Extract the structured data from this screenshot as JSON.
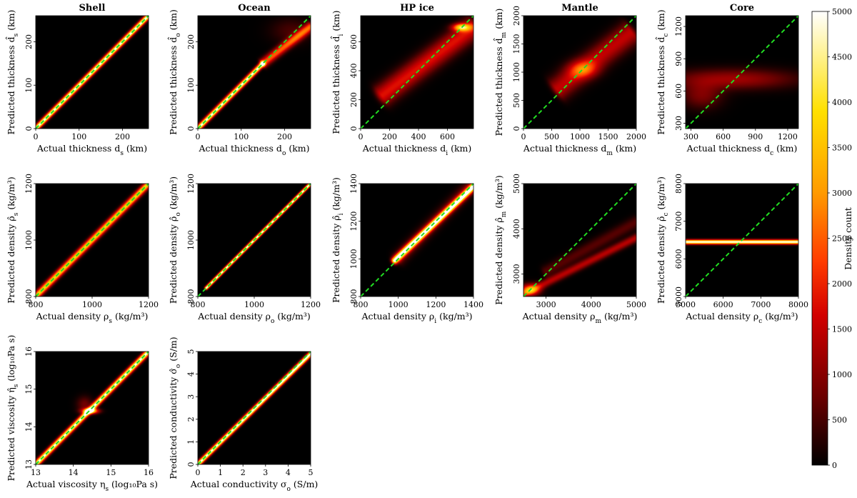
{
  "colorbar": {
    "label": "Density count",
    "ticks": [
      "0",
      "500",
      "1000",
      "1500",
      "2000",
      "2500",
      "3000",
      "3500",
      "4000",
      "4500",
      "5000"
    ],
    "range": [
      0,
      5000
    ],
    "colormap": [
      "#000000",
      "#6a0000",
      "#d20000",
      "#ff3c00",
      "#ff9a00",
      "#ffe000",
      "#ffffff"
    ]
  },
  "reference_line_color": "#22dd22",
  "chart_data": [
    {
      "id": "shell-thickness",
      "type": "heatmap",
      "title": "Shell",
      "xlabel": "Actual thickness d_s (km)",
      "ylabel": "Predicted thickness d̂_s (km)",
      "xlim": [
        0,
        260
      ],
      "ylim": [
        0,
        260
      ],
      "xticks": [
        0,
        100,
        200
      ],
      "yticks": [
        0,
        100,
        200
      ],
      "diagonal": true,
      "blobs": [
        {
          "type": "band",
          "x0": 0,
          "y0": 0,
          "x1": 260,
          "y1": 260,
          "spread": 4,
          "intensity": 5000
        }
      ]
    },
    {
      "id": "ocean-thickness",
      "type": "heatmap",
      "title": "Ocean",
      "xlabel": "Actual thickness d_o (km)",
      "ylabel": "Predicted thickness d̂_o (km)",
      "xlim": [
        0,
        260
      ],
      "ylim": [
        0,
        260
      ],
      "xticks": [
        0,
        100,
        200
      ],
      "yticks": [
        0,
        100,
        200
      ],
      "diagonal": true,
      "blobs": [
        {
          "type": "band",
          "x0": 0,
          "y0": 0,
          "x1": 150,
          "y1": 150,
          "spread": 4,
          "intensity": 5000
        },
        {
          "type": "band",
          "x0": 150,
          "y0": 150,
          "x1": 260,
          "y1": 235,
          "spread": 7,
          "intensity": 2500
        },
        {
          "type": "spot",
          "x": 215,
          "y": 225,
          "rx": 45,
          "ry": 28,
          "intensity": 500
        }
      ]
    },
    {
      "id": "hpice-thickness",
      "type": "heatmap",
      "title": "HP ice",
      "xlabel": "Actual thickness d_i (km)",
      "ylabel": "Predicted thickness d̂_i (km)",
      "xlim": [
        0,
        780
      ],
      "ylim": [
        0,
        780
      ],
      "xticks": [
        0,
        200,
        400,
        600
      ],
      "yticks": [
        0,
        200,
        400,
        600
      ],
      "diagonal": true,
      "blobs": [
        {
          "type": "band",
          "x0": 150,
          "y0": 230,
          "x1": 780,
          "y1": 700,
          "spread": 50,
          "intensity": 1800
        },
        {
          "type": "spot",
          "x": 700,
          "y": 700,
          "rx": 60,
          "ry": 25,
          "intensity": 3500
        }
      ]
    },
    {
      "id": "mantle-thickness",
      "type": "heatmap",
      "title": "Mantle",
      "xlabel": "Actual thickness d_m (km)",
      "ylabel": "Predicted thickness d̂_m (km)",
      "xlim": [
        0,
        2000
      ],
      "ylim": [
        0,
        2000
      ],
      "xticks": [
        0,
        500,
        1000,
        1500,
        2000
      ],
      "yticks": [
        0,
        500,
        1000,
        1500,
        2000
      ],
      "diagonal": true,
      "blobs": [
        {
          "type": "band",
          "x0": 600,
          "y0": 700,
          "x1": 1900,
          "y1": 1700,
          "spread": 140,
          "intensity": 1500
        },
        {
          "type": "spot",
          "x": 1050,
          "y": 1050,
          "rx": 250,
          "ry": 150,
          "intensity": 1600
        }
      ]
    },
    {
      "id": "core-thickness",
      "type": "heatmap",
      "title": "Core",
      "xlabel": "Actual thickness d_c (km)",
      "ylabel": "Predicted thickness d̂_c (km)",
      "xlim": [
        250,
        1300
      ],
      "ylim": [
        250,
        1300
      ],
      "xticks": [
        300,
        600,
        900,
        1200
      ],
      "yticks": [
        300,
        600,
        900,
        1200
      ],
      "diagonal": true,
      "blobs": [
        {
          "type": "spot",
          "x": 700,
          "y": 710,
          "rx": 550,
          "ry": 90,
          "intensity": 1200
        },
        {
          "type": "spot",
          "x": 400,
          "y": 560,
          "rx": 180,
          "ry": 120,
          "intensity": 900
        }
      ]
    },
    {
      "id": "shell-density",
      "type": "heatmap",
      "xlabel": "Actual density ρ_s (kg/m³)",
      "ylabel": "Predicted density ρ̂_s (kg/m³)",
      "xlim": [
        800,
        1200
      ],
      "ylim": [
        800,
        1200
      ],
      "xticks": [
        800,
        1000,
        1200
      ],
      "yticks": [
        800,
        1000,
        1200
      ],
      "diagonal": true,
      "blobs": [
        {
          "type": "band",
          "x0": 800,
          "y0": 800,
          "x1": 1200,
          "y1": 1200,
          "spread": 8,
          "intensity": 3800
        }
      ]
    },
    {
      "id": "ocean-density",
      "type": "heatmap",
      "xlabel": "Actual density ρ_o (kg/m³)",
      "ylabel": "Predicted density ρ̂_o (kg/m³)",
      "xlim": [
        800,
        1200
      ],
      "ylim": [
        800,
        1200
      ],
      "xticks": [
        800,
        1000,
        1200
      ],
      "yticks": [
        800,
        1000,
        1200
      ],
      "diagonal": true,
      "blobs": [
        {
          "type": "band",
          "x0": 830,
          "y0": 830,
          "x1": 1200,
          "y1": 1200,
          "spread": 4,
          "intensity": 5000
        }
      ]
    },
    {
      "id": "hpice-density",
      "type": "heatmap",
      "xlabel": "Actual density ρ_i (kg/m³)",
      "ylabel": "Predicted density ρ̂_i (kg/m³)",
      "xlim": [
        800,
        1400
      ],
      "ylim": [
        800,
        1400
      ],
      "xticks": [
        800,
        1000,
        1200,
        1400
      ],
      "yticks": [
        800,
        1000,
        1200,
        1400
      ],
      "diagonal": true,
      "blobs": [
        {
          "type": "band",
          "x0": 980,
          "y0": 990,
          "x1": 1400,
          "y1": 1385,
          "spread": 12,
          "intensity": 5000
        },
        {
          "type": "band",
          "x0": 1000,
          "y0": 1000,
          "x1": 1400,
          "y1": 1400,
          "spread": 25,
          "intensity": 900
        }
      ]
    },
    {
      "id": "mantle-density",
      "type": "heatmap",
      "xlabel": "Actual density ρ_m (kg/m³)",
      "ylabel": "Predicted density ρ̂_m (kg/m³)",
      "xlim": [
        2500,
        5000
      ],
      "ylim": [
        2500,
        5000
      ],
      "xticks": [
        3000,
        4000,
        5000
      ],
      "yticks": [
        3000,
        4000,
        5000
      ],
      "diagonal": true,
      "blobs": [
        {
          "type": "band",
          "x0": 2500,
          "y0": 2550,
          "x1": 5000,
          "y1": 3800,
          "spread": 60,
          "intensity": 1400
        },
        {
          "type": "band",
          "x0": 3000,
          "y0": 3050,
          "x1": 5000,
          "y1": 4150,
          "spread": 90,
          "intensity": 600
        },
        {
          "type": "spot",
          "x": 2650,
          "y": 2650,
          "rx": 200,
          "ry": 120,
          "intensity": 2800
        }
      ]
    },
    {
      "id": "core-density",
      "type": "heatmap",
      "xlabel": "Actual density ρ_c (kg/m³)",
      "ylabel": "Predicted density ρ̂_c (kg/m³)",
      "xlim": [
        5000,
        8000
      ],
      "ylim": [
        5000,
        8000
      ],
      "xticks": [
        5000,
        6000,
        7000,
        8000
      ],
      "yticks": [
        5000,
        6000,
        7000,
        8000
      ],
      "diagonal": true,
      "blobs": [
        {
          "type": "band",
          "x0": 5000,
          "y0": 6450,
          "x1": 8000,
          "y1": 6450,
          "spread": 40,
          "intensity": 5000
        }
      ]
    },
    {
      "id": "shell-viscosity",
      "type": "heatmap",
      "xlabel": "Actual viscosity η_s (log₁₀Pa s)",
      "ylabel": "Predicted viscosity η̂_s (log₁₀Pa s)",
      "xlim": [
        13,
        16
      ],
      "ylim": [
        13,
        16
      ],
      "xticks": [
        13,
        14,
        15,
        16
      ],
      "yticks": [
        13,
        14,
        15,
        16
      ],
      "diagonal": true,
      "blobs": [
        {
          "type": "band",
          "x0": 13,
          "y0": 13,
          "x1": 16,
          "y1": 16,
          "spread": 0.05,
          "intensity": 5000
        },
        {
          "type": "spot",
          "x": 14.45,
          "y": 14.42,
          "rx": 0.2,
          "ry": 0.07,
          "intensity": 4500
        },
        {
          "type": "spot",
          "x": 14.3,
          "y": 14.6,
          "rx": 0.2,
          "ry": 0.2,
          "intensity": 800
        }
      ]
    },
    {
      "id": "ocean-conductivity",
      "type": "heatmap",
      "xlabel": "Actual conductivity σ_o (S/m)",
      "ylabel": "Predicted conductivity σ̂_o (S/m)",
      "xlim": [
        0,
        5
      ],
      "ylim": [
        0,
        5
      ],
      "xticks": [
        0,
        1,
        2,
        3,
        4,
        5
      ],
      "yticks": [
        0,
        1,
        2,
        3,
        4,
        5
      ],
      "diagonal": true,
      "blobs": [
        {
          "type": "band",
          "x0": 0,
          "y0": 0,
          "x1": 5,
          "y1": 4.9,
          "spread": 0.07,
          "intensity": 5000
        }
      ]
    }
  ]
}
